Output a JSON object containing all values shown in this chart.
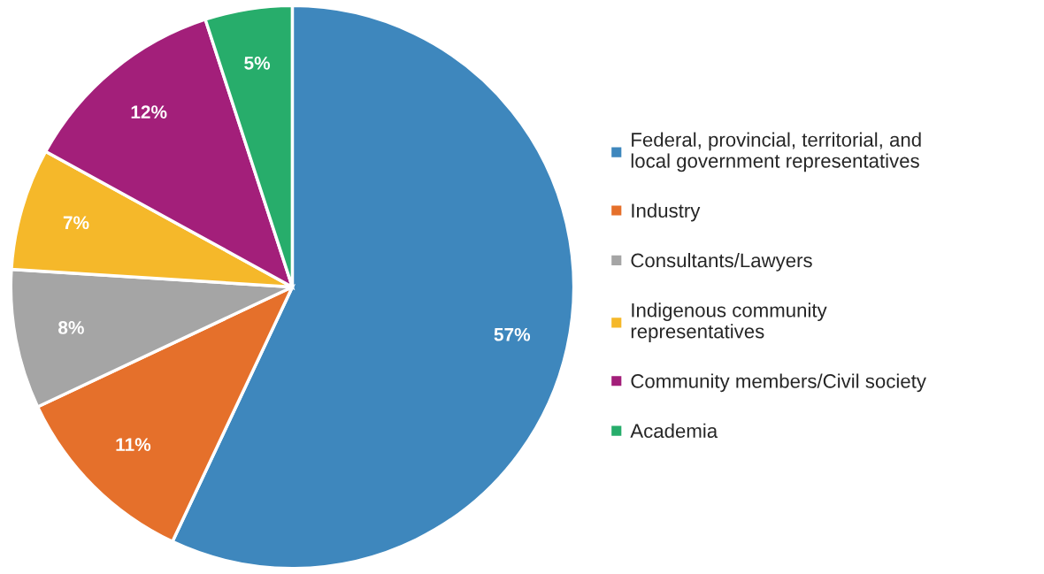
{
  "chart_data": {
    "type": "pie",
    "categories": [
      "Federal, provincial, territorial, and\nlocal government representatives",
      "Industry",
      "Consultants/Lawyers",
      "Indigenous community\nrepresentatives",
      "Community members/Civil society",
      "Academia"
    ],
    "values": [
      57,
      11,
      8,
      7,
      12,
      5
    ],
    "colors": [
      "#3e87bd",
      "#e5702b",
      "#a5a5a5",
      "#f5b82a",
      "#a31f7a",
      "#27ad6b"
    ],
    "value_labels": [
      "57%",
      "11%",
      "8%",
      "7%",
      "12%",
      "5%"
    ],
    "legend": "right"
  }
}
